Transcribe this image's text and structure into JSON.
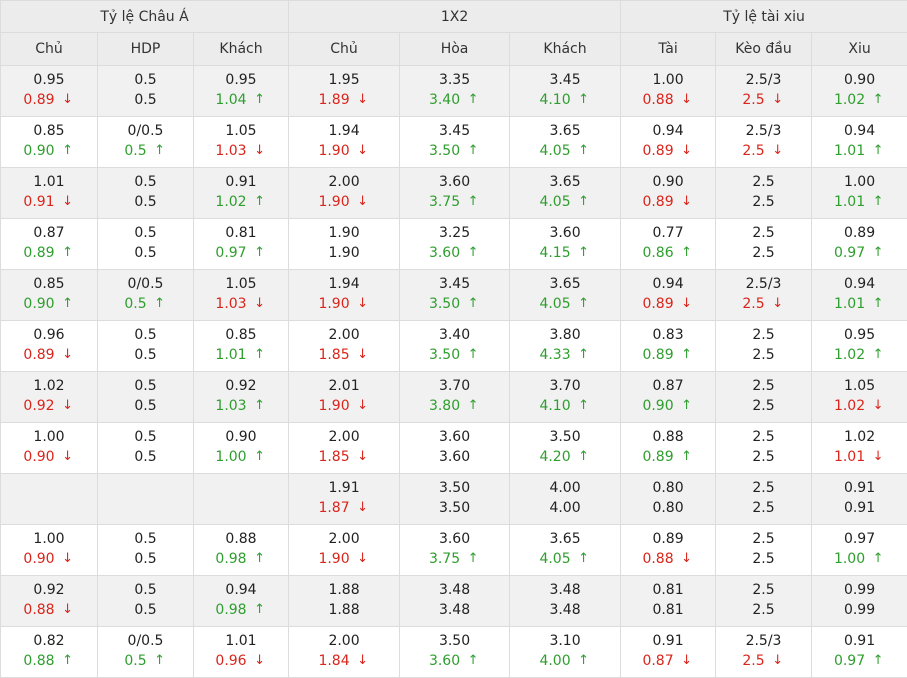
{
  "header": {
    "groups": [
      "Tỷ lệ Châu Á",
      "1X2",
      "Tỷ lệ tài xiu"
    ],
    "columns": [
      "Chủ",
      "HDP",
      "Khách",
      "Chủ",
      "Hòa",
      "Khách",
      "Tài",
      "Kèo đầu",
      "Xiu"
    ]
  },
  "colors": {
    "up": "#2e9e2e",
    "down": "#d9251b",
    "neutral": "#222222",
    "header_bg": "#ececec",
    "shade_bg": "#f1f1f1"
  },
  "rows": [
    {
      "cells": [
        {
          "top": "0.95",
          "bottom": "0.89",
          "dir": "down"
        },
        {
          "top": "0.5",
          "bottom": "0.5",
          "dir": "none"
        },
        {
          "top": "0.95",
          "bottom": "1.04",
          "dir": "up"
        },
        {
          "top": "1.95",
          "bottom": "1.89",
          "dir": "down"
        },
        {
          "top": "3.35",
          "bottom": "3.40",
          "dir": "up"
        },
        {
          "top": "3.45",
          "bottom": "4.10",
          "dir": "up"
        },
        {
          "top": "1.00",
          "bottom": "0.88",
          "dir": "down"
        },
        {
          "top": "2.5/3",
          "bottom": "2.5",
          "dir": "down"
        },
        {
          "top": "0.90",
          "bottom": "1.02",
          "dir": "up"
        }
      ]
    },
    {
      "cells": [
        {
          "top": "0.85",
          "bottom": "0.90",
          "dir": "up"
        },
        {
          "top": "0/0.5",
          "bottom": "0.5",
          "dir": "up"
        },
        {
          "top": "1.05",
          "bottom": "1.03",
          "dir": "down"
        },
        {
          "top": "1.94",
          "bottom": "1.90",
          "dir": "down"
        },
        {
          "top": "3.45",
          "bottom": "3.50",
          "dir": "up"
        },
        {
          "top": "3.65",
          "bottom": "4.05",
          "dir": "up"
        },
        {
          "top": "0.94",
          "bottom": "0.89",
          "dir": "down"
        },
        {
          "top": "2.5/3",
          "bottom": "2.5",
          "dir": "down"
        },
        {
          "top": "0.94",
          "bottom": "1.01",
          "dir": "up"
        }
      ]
    },
    {
      "cells": [
        {
          "top": "1.01",
          "bottom": "0.91",
          "dir": "down"
        },
        {
          "top": "0.5",
          "bottom": "0.5",
          "dir": "none"
        },
        {
          "top": "0.91",
          "bottom": "1.02",
          "dir": "up"
        },
        {
          "top": "2.00",
          "bottom": "1.90",
          "dir": "down"
        },
        {
          "top": "3.60",
          "bottom": "3.75",
          "dir": "up"
        },
        {
          "top": "3.65",
          "bottom": "4.05",
          "dir": "up"
        },
        {
          "top": "0.90",
          "bottom": "0.89",
          "dir": "down"
        },
        {
          "top": "2.5",
          "bottom": "2.5",
          "dir": "none"
        },
        {
          "top": "1.00",
          "bottom": "1.01",
          "dir": "up"
        }
      ]
    },
    {
      "cells": [
        {
          "top": "0.87",
          "bottom": "0.89",
          "dir": "up"
        },
        {
          "top": "0.5",
          "bottom": "0.5",
          "dir": "none"
        },
        {
          "top": "0.81",
          "bottom": "0.97",
          "dir": "up"
        },
        {
          "top": "1.90",
          "bottom": "1.90",
          "dir": "none"
        },
        {
          "top": "3.25",
          "bottom": "3.60",
          "dir": "up"
        },
        {
          "top": "3.60",
          "bottom": "4.15",
          "dir": "up"
        },
        {
          "top": "0.77",
          "bottom": "0.86",
          "dir": "up"
        },
        {
          "top": "2.5",
          "bottom": "2.5",
          "dir": "none"
        },
        {
          "top": "0.89",
          "bottom": "0.97",
          "dir": "up"
        }
      ]
    },
    {
      "cells": [
        {
          "top": "0.85",
          "bottom": "0.90",
          "dir": "up"
        },
        {
          "top": "0/0.5",
          "bottom": "0.5",
          "dir": "up"
        },
        {
          "top": "1.05",
          "bottom": "1.03",
          "dir": "down"
        },
        {
          "top": "1.94",
          "bottom": "1.90",
          "dir": "down"
        },
        {
          "top": "3.45",
          "bottom": "3.50",
          "dir": "up"
        },
        {
          "top": "3.65",
          "bottom": "4.05",
          "dir": "up"
        },
        {
          "top": "0.94",
          "bottom": "0.89",
          "dir": "down"
        },
        {
          "top": "2.5/3",
          "bottom": "2.5",
          "dir": "down"
        },
        {
          "top": "0.94",
          "bottom": "1.01",
          "dir": "up"
        }
      ]
    },
    {
      "cells": [
        {
          "top": "0.96",
          "bottom": "0.89",
          "dir": "down"
        },
        {
          "top": "0.5",
          "bottom": "0.5",
          "dir": "none"
        },
        {
          "top": "0.85",
          "bottom": "1.01",
          "dir": "up"
        },
        {
          "top": "2.00",
          "bottom": "1.85",
          "dir": "down"
        },
        {
          "top": "3.40",
          "bottom": "3.50",
          "dir": "up"
        },
        {
          "top": "3.80",
          "bottom": "4.33",
          "dir": "up"
        },
        {
          "top": "0.83",
          "bottom": "0.89",
          "dir": "up"
        },
        {
          "top": "2.5",
          "bottom": "2.5",
          "dir": "none"
        },
        {
          "top": "0.95",
          "bottom": "1.02",
          "dir": "up"
        }
      ]
    },
    {
      "cells": [
        {
          "top": "1.02",
          "bottom": "0.92",
          "dir": "down"
        },
        {
          "top": "0.5",
          "bottom": "0.5",
          "dir": "none"
        },
        {
          "top": "0.92",
          "bottom": "1.03",
          "dir": "up"
        },
        {
          "top": "2.01",
          "bottom": "1.90",
          "dir": "down"
        },
        {
          "top": "3.70",
          "bottom": "3.80",
          "dir": "up"
        },
        {
          "top": "3.70",
          "bottom": "4.10",
          "dir": "up"
        },
        {
          "top": "0.87",
          "bottom": "0.90",
          "dir": "up"
        },
        {
          "top": "2.5",
          "bottom": "2.5",
          "dir": "none"
        },
        {
          "top": "1.05",
          "bottom": "1.02",
          "dir": "down"
        }
      ]
    },
    {
      "cells": [
        {
          "top": "1.00",
          "bottom": "0.90",
          "dir": "down"
        },
        {
          "top": "0.5",
          "bottom": "0.5",
          "dir": "none"
        },
        {
          "top": "0.90",
          "bottom": "1.00",
          "dir": "up"
        },
        {
          "top": "2.00",
          "bottom": "1.85",
          "dir": "down"
        },
        {
          "top": "3.60",
          "bottom": "3.60",
          "dir": "none"
        },
        {
          "top": "3.50",
          "bottom": "4.20",
          "dir": "up"
        },
        {
          "top": "0.88",
          "bottom": "0.89",
          "dir": "up"
        },
        {
          "top": "2.5",
          "bottom": "2.5",
          "dir": "none"
        },
        {
          "top": "1.02",
          "bottom": "1.01",
          "dir": "down"
        }
      ]
    },
    {
      "cells": [
        {
          "top": "",
          "bottom": "",
          "dir": "none"
        },
        {
          "top": "",
          "bottom": "",
          "dir": "none"
        },
        {
          "top": "",
          "bottom": "",
          "dir": "none"
        },
        {
          "top": "1.91",
          "bottom": "1.87",
          "dir": "down"
        },
        {
          "top": "3.50",
          "bottom": "3.50",
          "dir": "none"
        },
        {
          "top": "4.00",
          "bottom": "4.00",
          "dir": "none"
        },
        {
          "top": "0.80",
          "bottom": "0.80",
          "dir": "none"
        },
        {
          "top": "2.5",
          "bottom": "2.5",
          "dir": "none"
        },
        {
          "top": "0.91",
          "bottom": "0.91",
          "dir": "none"
        }
      ]
    },
    {
      "cells": [
        {
          "top": "1.00",
          "bottom": "0.90",
          "dir": "down"
        },
        {
          "top": "0.5",
          "bottom": "0.5",
          "dir": "none"
        },
        {
          "top": "0.88",
          "bottom": "0.98",
          "dir": "up"
        },
        {
          "top": "2.00",
          "bottom": "1.90",
          "dir": "down"
        },
        {
          "top": "3.60",
          "bottom": "3.75",
          "dir": "up"
        },
        {
          "top": "3.65",
          "bottom": "4.05",
          "dir": "up"
        },
        {
          "top": "0.89",
          "bottom": "0.88",
          "dir": "down"
        },
        {
          "top": "2.5",
          "bottom": "2.5",
          "dir": "none"
        },
        {
          "top": "0.97",
          "bottom": "1.00",
          "dir": "up"
        }
      ]
    },
    {
      "cells": [
        {
          "top": "0.92",
          "bottom": "0.88",
          "dir": "down"
        },
        {
          "top": "0.5",
          "bottom": "0.5",
          "dir": "none"
        },
        {
          "top": "0.94",
          "bottom": "0.98",
          "dir": "up"
        },
        {
          "top": "1.88",
          "bottom": "1.88",
          "dir": "none"
        },
        {
          "top": "3.48",
          "bottom": "3.48",
          "dir": "none"
        },
        {
          "top": "3.48",
          "bottom": "3.48",
          "dir": "none"
        },
        {
          "top": "0.81",
          "bottom": "0.81",
          "dir": "none"
        },
        {
          "top": "2.5",
          "bottom": "2.5",
          "dir": "none"
        },
        {
          "top": "0.99",
          "bottom": "0.99",
          "dir": "none"
        }
      ]
    },
    {
      "cells": [
        {
          "top": "0.82",
          "bottom": "0.88",
          "dir": "up"
        },
        {
          "top": "0/0.5",
          "bottom": "0.5",
          "dir": "up"
        },
        {
          "top": "1.01",
          "bottom": "0.96",
          "dir": "down"
        },
        {
          "top": "2.00",
          "bottom": "1.84",
          "dir": "down"
        },
        {
          "top": "3.50",
          "bottom": "3.60",
          "dir": "up"
        },
        {
          "top": "3.10",
          "bottom": "4.00",
          "dir": "up"
        },
        {
          "top": "0.91",
          "bottom": "0.87",
          "dir": "down"
        },
        {
          "top": "2.5/3",
          "bottom": "2.5",
          "dir": "down"
        },
        {
          "top": "0.91",
          "bottom": "0.97",
          "dir": "up"
        }
      ]
    }
  ]
}
